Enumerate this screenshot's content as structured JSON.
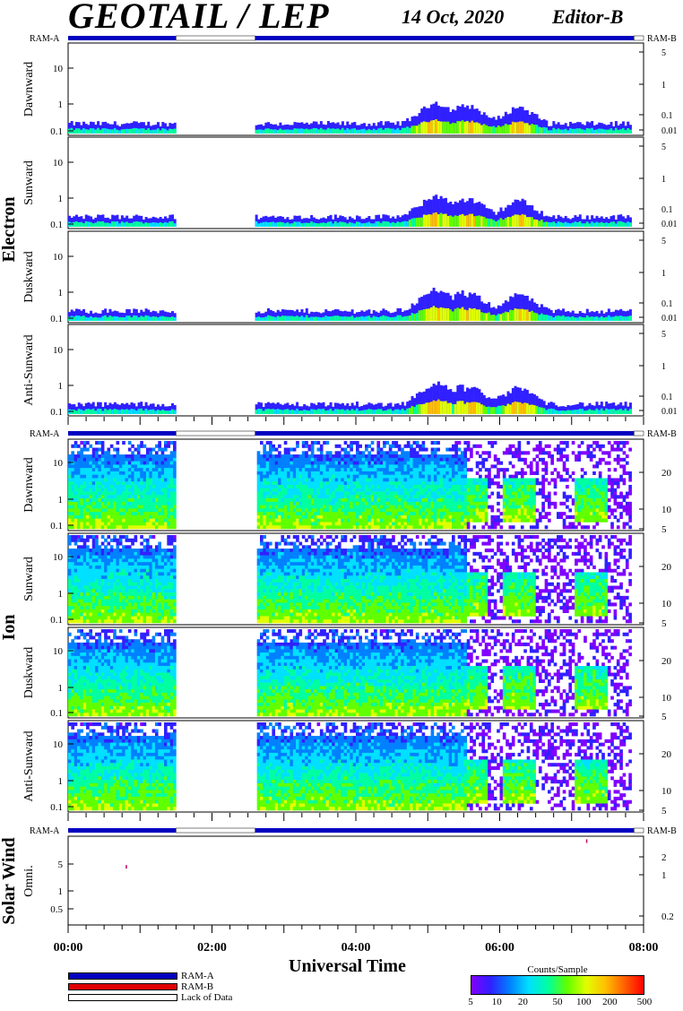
{
  "header": {
    "title": "GEOTAIL / LEP",
    "date": "14 Oct, 2020",
    "editor": "Editor-B"
  },
  "ram_a_label": "RAM-A",
  "ram_b_label": "RAM-B",
  "sections": [
    {
      "name": "Electron",
      "panels": [
        "Dawnward",
        "Sunward",
        "Duskward",
        "Anti-Sunward"
      ]
    },
    {
      "name": "Ion",
      "panels": [
        "Dawnward",
        "Sunward",
        "Duskward",
        "Anti-Sunward"
      ]
    },
    {
      "name": "Solar Wind",
      "panels": [
        "Omni."
      ]
    }
  ],
  "axes": {
    "x_label": "Universal Time",
    "x_ticks": [
      "00:00",
      "02:00",
      "04:00",
      "06:00",
      "08:00"
    ],
    "electron_left_ticks": [
      "10",
      "1",
      "0.1"
    ],
    "electron_right_ticks": [
      "5",
      "1",
      "0.1",
      "0.01"
    ],
    "ion_left_ticks": [
      "10",
      "1",
      "0.1"
    ],
    "ion_right_ticks": [
      "20",
      "10",
      "5"
    ],
    "sw_left_ticks": [
      "5",
      "1",
      "0.5"
    ],
    "sw_right_ticks": [
      "2",
      "1",
      "0.2"
    ]
  },
  "colors": {
    "ram_a": "#0000c0",
    "ram_b": "#e00000",
    "lack_of_data": "#ffffff",
    "spectrogram_scale": [
      "#8000ff",
      "#3020ff",
      "#0080ff",
      "#00e0ff",
      "#00ffa0",
      "#60ff00",
      "#e0ff00",
      "#ffc000",
      "#ff6000",
      "#ff0000"
    ]
  },
  "legend": {
    "items": [
      {
        "label": "RAM-A",
        "color": "#0000c0"
      },
      {
        "label": "RAM-B",
        "color": "#e00000"
      },
      {
        "label": "Lack of Data",
        "color": "#ffffff"
      }
    ]
  },
  "colorbar": {
    "title": "Counts/Sample",
    "ticks": [
      "5",
      "10",
      "20",
      "50",
      "100",
      "200",
      "500"
    ]
  },
  "chart_data": {
    "type": "heatmap",
    "title": "GEOTAIL / LEP",
    "xlabel": "Universal Time",
    "xlim": [
      "00:00",
      "08:00"
    ],
    "colorbar_label": "Counts/Sample",
    "colorbar_range": [
      5,
      500
    ],
    "data_gaps_ut": [
      [
        "01:30",
        "02:36"
      ]
    ],
    "data_end_ut": "07:50",
    "electron_panels": {
      "names": [
        "Dawnward",
        "Sunward",
        "Duskward",
        "Anti-Sunward"
      ],
      "ylim": [
        0.08,
        40
      ],
      "y_scale": "log",
      "activity_peaks_ut": [
        "05:05",
        "05:35",
        "06:15"
      ]
    },
    "ion_panels": {
      "names": [
        "Dawnward",
        "Sunward",
        "Duskward",
        "Anti-Sunward"
      ],
      "ylim": [
        0.08,
        40
      ],
      "y_scale": "log",
      "notes": "broad energetic flux 00:00-05:25, bursts near 05:35, 06:15, 07:15"
    },
    "solar_wind_panel": {
      "name": "Omni.",
      "ylim": [
        0.2,
        8
      ],
      "y_scale": "log",
      "points": [
        {
          "ut": "00:48",
          "y": 2.3
        },
        {
          "ut": "07:12",
          "y": 7
        }
      ]
    }
  }
}
